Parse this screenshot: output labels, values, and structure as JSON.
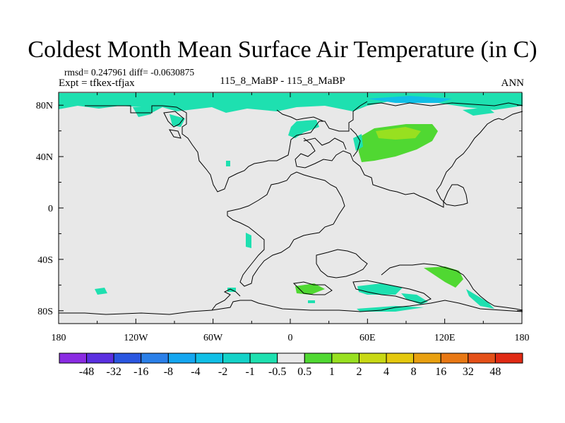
{
  "title": "Coldest Month Mean Surface Air Temperature (in C)",
  "stats": "rmsd= 0.247961  diff= -0.0630875",
  "expt": "Expt = tfkex-tfjax",
  "comparison": "115_8_MaBP - 115_8_MaBP",
  "season": "ANN",
  "map": {
    "land_color": "#e8e8e8",
    "lon_ticks": [
      "180",
      "120W",
      "60W",
      "0",
      "60E",
      "120E",
      "180"
    ],
    "lat_ticks": [
      "80N",
      "40N",
      "0",
      "40S",
      "80S"
    ]
  },
  "colorbar": {
    "labels": [
      "-48",
      "-32",
      "-16",
      "-8",
      "-4",
      "-2",
      "-1",
      "-0.5",
      "0.5",
      "1",
      "2",
      "4",
      "8",
      "16",
      "32",
      "48"
    ],
    "colors": [
      "#8a2be2",
      "#5a2fe0",
      "#2a56e0",
      "#2a7fe8",
      "#14a6f0",
      "#10bfe6",
      "#14d2c8",
      "#1ee0b0",
      "#e8e8e8",
      "#50d832",
      "#98e020",
      "#c8d814",
      "#e4c80e",
      "#e8a010",
      "#e87814",
      "#e45018",
      "#e02a14"
    ]
  }
}
